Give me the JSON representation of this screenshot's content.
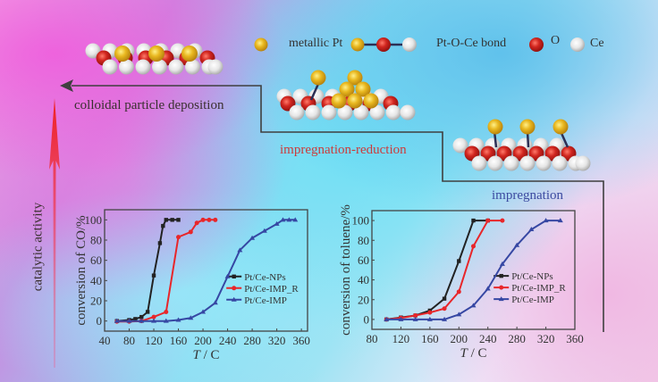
{
  "legend": {
    "metallic_pt": "metallic Pt",
    "bond": "Pt-O-Ce bond",
    "oxygen": "O",
    "cerium": "Ce"
  },
  "colors": {
    "pt": "#e3b21c",
    "o": "#d1261f",
    "ce": "#e2e2e2",
    "bond": "#2c2f55",
    "arrow": "#ee2a2a",
    "step_line": "#3f3f3f",
    "np_series": "#222222",
    "imp_r_series": "#e8262a",
    "imp_series": "#3647a3",
    "label_reduction": "#cc3b3b",
    "label_impregnation": "#3b4aa0"
  },
  "labels": {
    "colloidal": "colloidal particle deposition",
    "impregnation_reduction": "impregnation-reduction",
    "impregnation": "impregnation",
    "catalytic_activity": "catalytic activity"
  },
  "chart_data": [
    {
      "type": "line",
      "title": "",
      "xlabel": "T / C",
      "ylabel": "conversion of CO/%",
      "xlim": [
        40,
        370
      ],
      "ylim": [
        -10,
        110
      ],
      "xticks": [
        40,
        80,
        120,
        160,
        200,
        240,
        280,
        320,
        360
      ],
      "yticks": [
        0,
        20,
        40,
        60,
        80,
        100
      ],
      "grid": false,
      "legend_position": "bottom-right",
      "series": [
        {
          "name": "Pt/Ce-NPs",
          "marker": "square",
          "color": "#222222",
          "x": [
            60,
            80,
            90,
            100,
            110,
            120,
            130,
            135,
            140,
            150,
            160
          ],
          "y": [
            0,
            1,
            2,
            4,
            9,
            45,
            77,
            94,
            100,
            100,
            100
          ]
        },
        {
          "name": "Pt/Ce-IMP_R",
          "marker": "circle",
          "color": "#e8262a",
          "x": [
            60,
            80,
            100,
            120,
            140,
            160,
            180,
            190,
            200,
            210,
            220
          ],
          "y": [
            -0.5,
            -0.5,
            0,
            4,
            9,
            83,
            88,
            97,
            100,
            100,
            100
          ]
        },
        {
          "name": "Pt/Ce-IMP",
          "marker": "triangle",
          "color": "#3647a3",
          "x": [
            60,
            80,
            100,
            120,
            140,
            160,
            180,
            200,
            220,
            240,
            260,
            280,
            300,
            320,
            330,
            340,
            350
          ],
          "y": [
            0,
            0,
            0,
            0,
            0,
            1,
            3,
            9,
            18,
            44,
            70,
            82,
            89,
            96,
            100,
            100,
            100
          ]
        }
      ]
    },
    {
      "type": "line",
      "title": "",
      "xlabel": "T / C",
      "ylabel": "conversion of toluene/%",
      "xlim": [
        80,
        360
      ],
      "ylim": [
        -10,
        110
      ],
      "xticks": [
        80,
        120,
        160,
        200,
        240,
        280,
        320,
        360
      ],
      "yticks": [
        0,
        20,
        40,
        60,
        80,
        100
      ],
      "grid": false,
      "legend_position": "bottom-right",
      "series": [
        {
          "name": "Pt/Ce-NPs",
          "marker": "square",
          "color": "#222222",
          "x": [
            100,
            120,
            140,
            160,
            180,
            200,
            220,
            240
          ],
          "y": [
            0,
            2,
            4,
            9,
            21,
            59,
            100,
            100
          ]
        },
        {
          "name": "Pt/Ce-IMP_R",
          "marker": "circle",
          "color": "#e8262a",
          "x": [
            100,
            120,
            140,
            160,
            180,
            200,
            220,
            240,
            260
          ],
          "y": [
            0,
            1.5,
            4,
            7,
            11,
            28,
            74,
            100,
            100
          ]
        },
        {
          "name": "Pt/Ce-IMP",
          "marker": "triangle",
          "color": "#3647a3",
          "x": [
            100,
            120,
            140,
            160,
            180,
            200,
            220,
            240,
            260,
            280,
            300,
            320,
            340
          ],
          "y": [
            0,
            0,
            0,
            0,
            0,
            5,
            14,
            31,
            56,
            75,
            91,
            100,
            100
          ]
        }
      ]
    }
  ]
}
